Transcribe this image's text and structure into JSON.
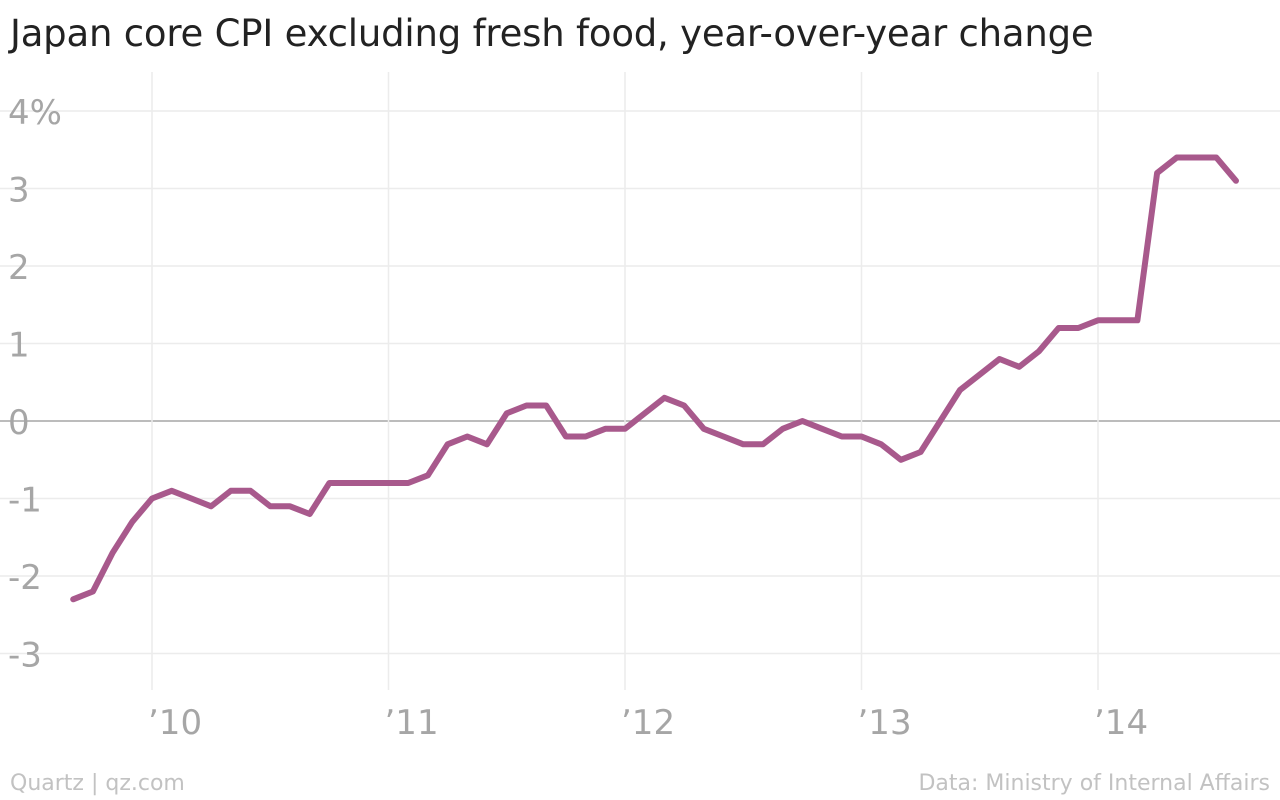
{
  "header": {
    "title": "Japan core CPI excluding fresh food, year-over-year change"
  },
  "footer": {
    "credit": "Quartz | qz.com",
    "source": "Data: Ministry of Internal Affairs"
  },
  "colors": {
    "line": "#a8598c",
    "grid": "#ececec",
    "zero_line": "#a6a6a6",
    "tick_text": "#a6a6a6"
  },
  "chart_data": {
    "type": "line",
    "title": "Japan core CPI excluding fresh food, year-over-year change",
    "xlabel": "",
    "ylabel": "",
    "ylim": [
      -3.5,
      4.3
    ],
    "xlim": [
      "2009-07",
      "2014-11"
    ],
    "grid": true,
    "legend": "none",
    "y_ticks": [
      {
        "value": 4,
        "label": "4%"
      },
      {
        "value": 3,
        "label": "3"
      },
      {
        "value": 2,
        "label": "2"
      },
      {
        "value": 1,
        "label": "1"
      },
      {
        "value": 0,
        "label": "0"
      },
      {
        "value": -1,
        "label": "-1"
      },
      {
        "value": -2,
        "label": "-2"
      },
      {
        "value": -3,
        "label": "-3"
      }
    ],
    "x_ticks": [
      {
        "value": "2010-01",
        "label": "’10"
      },
      {
        "value": "2011-01",
        "label": "’11"
      },
      {
        "value": "2012-01",
        "label": "’12"
      },
      {
        "value": "2013-01",
        "label": "’13"
      },
      {
        "value": "2014-01",
        "label": "’14"
      }
    ],
    "series": [
      {
        "color": "#a8598c",
        "points": [
          {
            "x": "2009-09",
            "y": -2.3
          },
          {
            "x": "2009-10",
            "y": -2.2
          },
          {
            "x": "2009-11",
            "y": -1.7
          },
          {
            "x": "2009-12",
            "y": -1.3
          },
          {
            "x": "2010-01",
            "y": -1.0
          },
          {
            "x": "2010-02",
            "y": -0.9
          },
          {
            "x": "2010-03",
            "y": -1.0
          },
          {
            "x": "2010-04",
            "y": -1.1
          },
          {
            "x": "2010-05",
            "y": -0.9
          },
          {
            "x": "2010-06",
            "y": -0.9
          },
          {
            "x": "2010-07",
            "y": -1.1
          },
          {
            "x": "2010-08",
            "y": -1.1
          },
          {
            "x": "2010-09",
            "y": -1.2
          },
          {
            "x": "2010-10",
            "y": -0.8
          },
          {
            "x": "2010-11",
            "y": -0.8
          },
          {
            "x": "2010-12",
            "y": -0.8
          },
          {
            "x": "2011-01",
            "y": -0.8
          },
          {
            "x": "2011-02",
            "y": -0.8
          },
          {
            "x": "2011-03",
            "y": -0.7
          },
          {
            "x": "2011-04",
            "y": -0.3
          },
          {
            "x": "2011-05",
            "y": -0.2
          },
          {
            "x": "2011-06",
            "y": -0.3
          },
          {
            "x": "2011-07",
            "y": 0.1
          },
          {
            "x": "2011-08",
            "y": 0.2
          },
          {
            "x": "2011-09",
            "y": 0.2
          },
          {
            "x": "2011-10",
            "y": -0.2
          },
          {
            "x": "2011-11",
            "y": -0.2
          },
          {
            "x": "2011-12",
            "y": -0.1
          },
          {
            "x": "2012-01",
            "y": -0.1
          },
          {
            "x": "2012-02",
            "y": 0.1
          },
          {
            "x": "2012-03",
            "y": 0.3
          },
          {
            "x": "2012-04",
            "y": 0.2
          },
          {
            "x": "2012-05",
            "y": -0.1
          },
          {
            "x": "2012-06",
            "y": -0.2
          },
          {
            "x": "2012-07",
            "y": -0.3
          },
          {
            "x": "2012-08",
            "y": -0.3
          },
          {
            "x": "2012-09",
            "y": -0.1
          },
          {
            "x": "2012-10",
            "y": 0.0
          },
          {
            "x": "2012-11",
            "y": -0.1
          },
          {
            "x": "2012-12",
            "y": -0.2
          },
          {
            "x": "2013-01",
            "y": -0.2
          },
          {
            "x": "2013-02",
            "y": -0.3
          },
          {
            "x": "2013-03",
            "y": -0.5
          },
          {
            "x": "2013-04",
            "y": -0.4
          },
          {
            "x": "2013-05",
            "y": 0.0
          },
          {
            "x": "2013-06",
            "y": 0.4
          },
          {
            "x": "2013-07",
            "y": 0.6
          },
          {
            "x": "2013-08",
            "y": 0.8
          },
          {
            "x": "2013-09",
            "y": 0.7
          },
          {
            "x": "2013-10",
            "y": 0.9
          },
          {
            "x": "2013-11",
            "y": 1.2
          },
          {
            "x": "2013-12",
            "y": 1.2
          },
          {
            "x": "2014-01",
            "y": 1.3
          },
          {
            "x": "2014-02",
            "y": 1.3
          },
          {
            "x": "2014-03",
            "y": 1.3
          },
          {
            "x": "2014-04",
            "y": 3.2
          },
          {
            "x": "2014-05",
            "y": 3.4
          },
          {
            "x": "2014-06",
            "y": 3.4
          },
          {
            "x": "2014-07",
            "y": 3.4
          },
          {
            "x": "2014-08",
            "y": 3.1
          }
        ]
      }
    ]
  }
}
